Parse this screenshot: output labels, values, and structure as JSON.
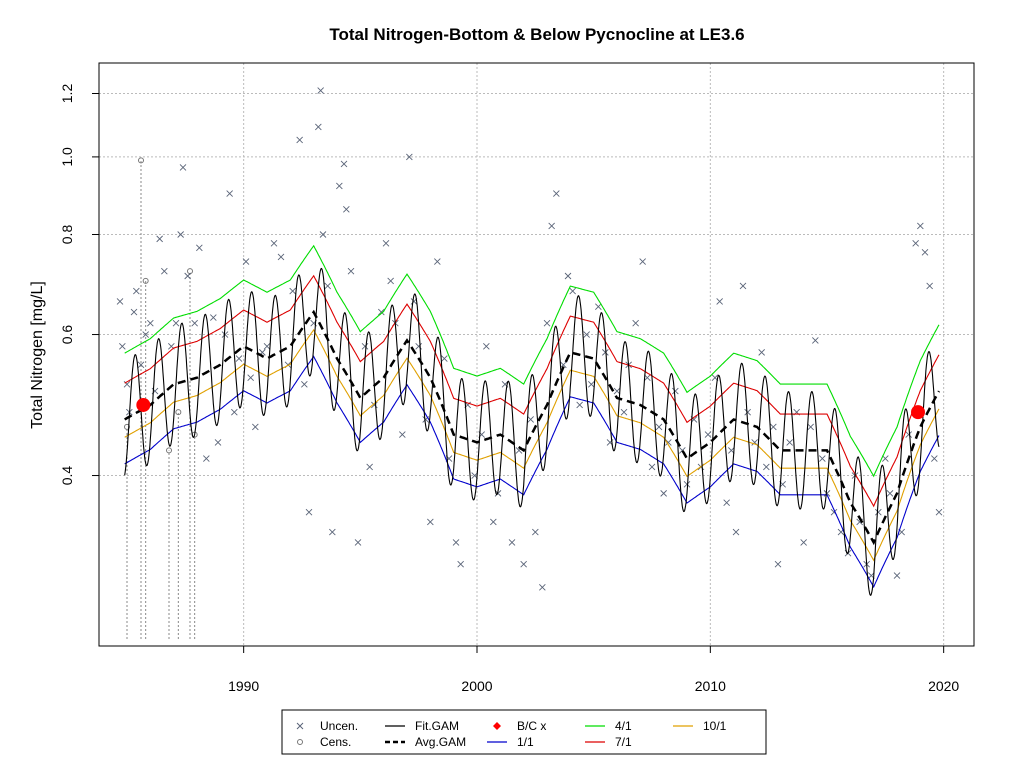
{
  "chart_data": {
    "type": "scatter",
    "title": "Total Nitrogen-Bottom & Below Pycnocline at LE3.6",
    "xlabel": "",
    "ylabel": "Total Nitrogen [mg/L]",
    "xlim": [
      1983.8,
      2021.3
    ],
    "ylim": [
      0.245,
      1.31
    ],
    "y_scale": "log",
    "x_ticks": [
      1990,
      2000,
      2010,
      2020
    ],
    "x_tick_labels": [
      "1990",
      "2000",
      "2010",
      "2020"
    ],
    "y_ticks": [
      0.4,
      0.6,
      0.8,
      1.0,
      1.2
    ],
    "y_tick_labels": [
      "0.4",
      "0.6",
      "0.8",
      "1.0",
      "1.2"
    ],
    "grid": true,
    "legend_position": "bottom-center",
    "legend": [
      {
        "label": "Uncen.",
        "symbol": "x",
        "color": "#5a6478"
      },
      {
        "label": "Cens.",
        "symbol": "o",
        "color": "#777777"
      },
      {
        "label": "Fit.GAM",
        "symbol": "line",
        "color": "#000000"
      },
      {
        "label": "Avg.GAM",
        "symbol": "dashed",
        "color": "#000000"
      },
      {
        "label": "B/C x",
        "symbol": "diamond",
        "color": "#ff0000"
      },
      {
        "label": "1/1",
        "symbol": "line",
        "color": "#0000cc"
      },
      {
        "label": "4/1",
        "symbol": "line",
        "color": "#00dd00"
      },
      {
        "label": "7/1",
        "symbol": "line",
        "color": "#dd0000"
      },
      {
        "label": "10/1",
        "symbol": "line",
        "color": "#e0a000"
      }
    ],
    "avg_gam": {
      "x": [
        1984.9,
        1986,
        1987,
        1988,
        1989,
        1990,
        1991,
        1992,
        1993,
        1994,
        1995,
        1996,
        1997,
        1998,
        1999,
        2000,
        2001,
        2002,
        2003,
        2004,
        2005,
        2006,
        2007,
        2008,
        2009,
        2010,
        2011,
        2012,
        2013,
        2014,
        2015,
        2016,
        2017,
        2018,
        2019,
        2019.8
      ],
      "y": [
        0.47,
        0.49,
        0.52,
        0.53,
        0.55,
        0.58,
        0.56,
        0.58,
        0.64,
        0.56,
        0.5,
        0.53,
        0.59,
        0.53,
        0.45,
        0.44,
        0.45,
        0.43,
        0.49,
        0.57,
        0.56,
        0.5,
        0.49,
        0.47,
        0.42,
        0.44,
        0.47,
        0.46,
        0.43,
        0.43,
        0.43,
        0.37,
        0.33,
        0.38,
        0.46,
        0.51
      ]
    },
    "seasonal_offsets": {
      "4/1": 1.21,
      "7/1": 1.11,
      "10/1": 0.95,
      "1/1": 0.88
    },
    "fit_gam_amplitude": 0.13,
    "bc_points": [
      {
        "x": 1985.7,
        "y": 0.49
      },
      {
        "x": 2018.9,
        "y": 0.48
      }
    ],
    "uncensored": [
      [
        1984.7,
        0.66
      ],
      [
        1984.8,
        0.58
      ],
      [
        1985.0,
        0.52
      ],
      [
        1985.1,
        0.48
      ],
      [
        1985.3,
        0.64
      ],
      [
        1985.4,
        0.68
      ],
      [
        1985.6,
        0.55
      ],
      [
        1985.8,
        0.6
      ],
      [
        1986.0,
        0.62
      ],
      [
        1986.2,
        0.51
      ],
      [
        1986.4,
        0.79
      ],
      [
        1986.6,
        0.72
      ],
      [
        1986.9,
        0.58
      ],
      [
        1987.1,
        0.62
      ],
      [
        1987.3,
        0.8
      ],
      [
        1987.4,
        0.97
      ],
      [
        1987.6,
        0.71
      ],
      [
        1987.9,
        0.62
      ],
      [
        1988.1,
        0.77
      ],
      [
        1988.4,
        0.42
      ],
      [
        1988.7,
        0.63
      ],
      [
        1988.9,
        0.44
      ],
      [
        1989.2,
        0.6
      ],
      [
        1989.4,
        0.9
      ],
      [
        1989.6,
        0.48
      ],
      [
        1989.8,
        0.56
      ],
      [
        1990.1,
        0.74
      ],
      [
        1990.3,
        0.53
      ],
      [
        1990.5,
        0.46
      ],
      [
        1990.8,
        0.57
      ],
      [
        1991.0,
        0.58
      ],
      [
        1991.3,
        0.78
      ],
      [
        1991.6,
        0.75
      ],
      [
        1991.9,
        0.55
      ],
      [
        1992.1,
        0.68
      ],
      [
        1992.4,
        1.05
      ],
      [
        1992.6,
        0.52
      ],
      [
        1992.8,
        0.36
      ],
      [
        1993.0,
        0.62
      ],
      [
        1993.2,
        1.09
      ],
      [
        1993.3,
        1.21
      ],
      [
        1993.4,
        0.8
      ],
      [
        1993.6,
        0.69
      ],
      [
        1993.8,
        0.34
      ],
      [
        1994.1,
        0.92
      ],
      [
        1994.3,
        0.98
      ],
      [
        1994.4,
        0.86
      ],
      [
        1994.6,
        0.72
      ],
      [
        1994.9,
        0.33
      ],
      [
        1995.2,
        0.58
      ],
      [
        1995.4,
        0.41
      ],
      [
        1995.6,
        0.49
      ],
      [
        1995.9,
        0.64
      ],
      [
        1996.1,
        0.78
      ],
      [
        1996.3,
        0.7
      ],
      [
        1996.5,
        0.62
      ],
      [
        1996.8,
        0.45
      ],
      [
        1997.1,
        1.0
      ],
      [
        1997.3,
        0.66
      ],
      [
        1997.5,
        0.58
      ],
      [
        1997.8,
        0.47
      ],
      [
        1998.0,
        0.35
      ],
      [
        1998.3,
        0.74
      ],
      [
        1998.6,
        0.56
      ],
      [
        1998.8,
        0.42
      ],
      [
        1999.1,
        0.33
      ],
      [
        1999.3,
        0.31
      ],
      [
        1999.6,
        0.49
      ],
      [
        1999.9,
        0.4
      ],
      [
        2000.2,
        0.45
      ],
      [
        2000.4,
        0.58
      ],
      [
        2000.7,
        0.35
      ],
      [
        2000.9,
        0.38
      ],
      [
        2001.2,
        0.52
      ],
      [
        2001.5,
        0.33
      ],
      [
        2001.8,
        0.43
      ],
      [
        2002.0,
        0.31
      ],
      [
        2002.3,
        0.47
      ],
      [
        2002.5,
        0.34
      ],
      [
        2002.8,
        0.29
      ],
      [
        2003.0,
        0.62
      ],
      [
        2003.2,
        0.82
      ],
      [
        2003.4,
        0.9
      ],
      [
        2003.7,
        0.55
      ],
      [
        2003.9,
        0.71
      ],
      [
        2004.1,
        0.68
      ],
      [
        2004.4,
        0.49
      ],
      [
        2004.7,
        0.6
      ],
      [
        2004.9,
        0.52
      ],
      [
        2005.2,
        0.65
      ],
      [
        2005.5,
        0.57
      ],
      [
        2005.7,
        0.44
      ],
      [
        2006.0,
        0.51
      ],
      [
        2006.3,
        0.48
      ],
      [
        2006.5,
        0.55
      ],
      [
        2006.8,
        0.62
      ],
      [
        2007.1,
        0.74
      ],
      [
        2007.3,
        0.53
      ],
      [
        2007.5,
        0.41
      ],
      [
        2007.8,
        0.46
      ],
      [
        2008.0,
        0.38
      ],
      [
        2008.2,
        0.44
      ],
      [
        2008.5,
        0.51
      ],
      [
        2008.8,
        0.43
      ],
      [
        2009.0,
        0.39
      ],
      [
        2009.3,
        0.47
      ],
      [
        2009.6,
        0.41
      ],
      [
        2009.9,
        0.45
      ],
      [
        2010.2,
        0.53
      ],
      [
        2010.4,
        0.66
      ],
      [
        2010.7,
        0.37
      ],
      [
        2010.9,
        0.43
      ],
      [
        2011.1,
        0.34
      ],
      [
        2011.4,
        0.69
      ],
      [
        2011.6,
        0.48
      ],
      [
        2011.9,
        0.44
      ],
      [
        2012.2,
        0.57
      ],
      [
        2012.4,
        0.41
      ],
      [
        2012.7,
        0.46
      ],
      [
        2012.9,
        0.31
      ],
      [
        2013.1,
        0.39
      ],
      [
        2013.4,
        0.44
      ],
      [
        2013.7,
        0.48
      ],
      [
        2014.0,
        0.33
      ],
      [
        2014.3,
        0.46
      ],
      [
        2014.5,
        0.59
      ],
      [
        2014.8,
        0.42
      ],
      [
        2015.0,
        0.38
      ],
      [
        2015.3,
        0.36
      ],
      [
        2015.6,
        0.34
      ],
      [
        2015.9,
        0.32
      ],
      [
        2016.2,
        0.4
      ],
      [
        2016.4,
        0.35
      ],
      [
        2016.7,
        0.31
      ],
      [
        2016.9,
        0.3
      ],
      [
        2017.2,
        0.36
      ],
      [
        2017.5,
        0.42
      ],
      [
        2017.7,
        0.38
      ],
      [
        2018.0,
        0.3
      ],
      [
        2018.2,
        0.34
      ],
      [
        2018.5,
        0.45
      ],
      [
        2018.8,
        0.78
      ],
      [
        2019.0,
        0.82
      ],
      [
        2019.2,
        0.76
      ],
      [
        2019.4,
        0.69
      ],
      [
        2019.6,
        0.42
      ],
      [
        2019.8,
        0.36
      ]
    ],
    "censored": [
      {
        "x": 1985.0,
        "hi": 0.46
      },
      {
        "x": 1985.6,
        "hi": 0.99
      },
      {
        "x": 1985.8,
        "hi": 0.7
      },
      {
        "x": 1986.8,
        "hi": 0.43
      },
      {
        "x": 1987.2,
        "hi": 0.48
      },
      {
        "x": 1987.7,
        "hi": 0.72
      },
      {
        "x": 1987.9,
        "hi": 0.45
      }
    ],
    "censored_low": 0.25
  }
}
